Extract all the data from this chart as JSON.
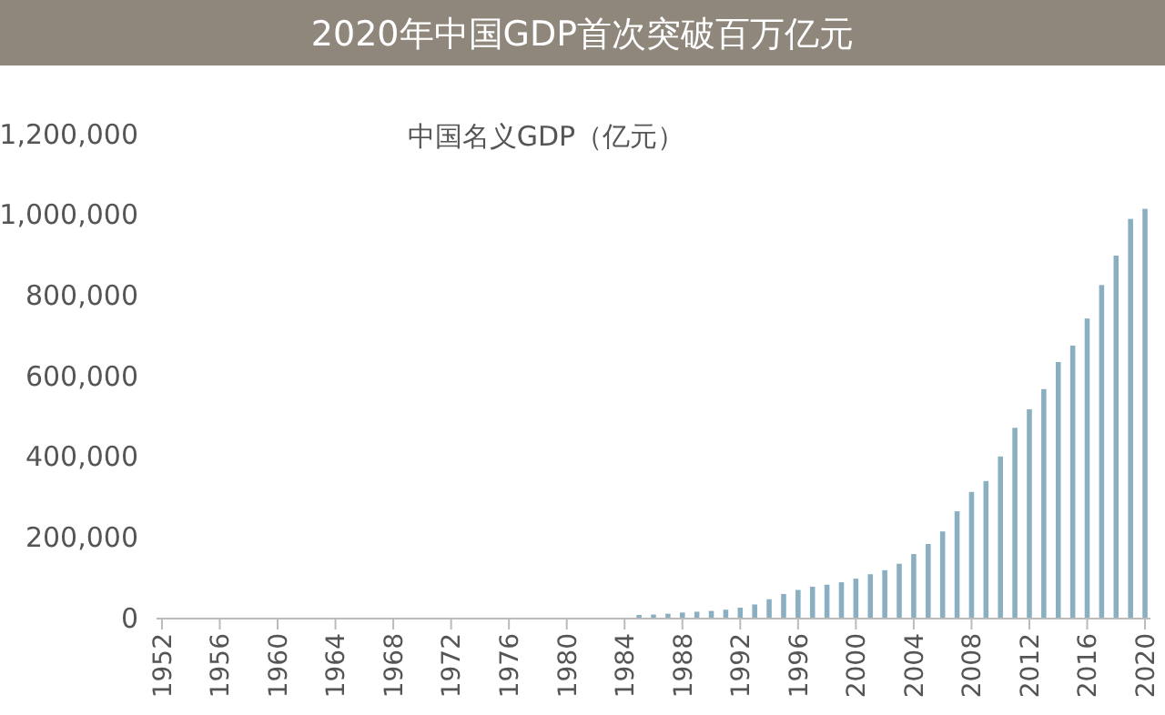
{
  "chart_data": {
    "type": "bar",
    "title": "2020年中国GDP首次突破百万亿元",
    "subtitle": "中国名义GDP（亿元）",
    "categories": [
      "1952",
      null,
      null,
      null,
      "1956",
      null,
      null,
      null,
      "1960",
      null,
      null,
      null,
      "1964",
      null,
      null,
      null,
      "1968",
      null,
      null,
      null,
      "1972",
      null,
      null,
      null,
      "1976",
      null,
      null,
      null,
      "1980",
      null,
      null,
      null,
      "1984",
      null,
      null,
      null,
      "1988",
      null,
      null,
      null,
      "1992",
      null,
      null,
      null,
      "1996",
      null,
      null,
      null,
      "2000",
      null,
      null,
      null,
      "2004",
      null,
      null,
      null,
      "2008",
      null,
      null,
      null,
      "2012",
      null,
      null,
      null,
      "2016",
      null,
      null,
      null,
      "2020"
    ],
    "values": [
      null,
      null,
      null,
      null,
      null,
      null,
      null,
      null,
      null,
      null,
      null,
      null,
      null,
      null,
      null,
      null,
      null,
      null,
      null,
      null,
      null,
      null,
      null,
      null,
      null,
      null,
      null,
      null,
      null,
      null,
      null,
      null,
      null,
      9000,
      10000,
      12000,
      15000,
      17000,
      19000,
      22000,
      27000,
      35000,
      48000,
      61000,
      71000,
      79000,
      84000,
      90000,
      99000,
      110000,
      120000,
      136000,
      160000,
      185000,
      216000,
      266000,
      314000,
      341000,
      402000,
      473000,
      519000,
      569000,
      636000,
      677000,
      744000,
      827000,
      900000,
      991000,
      1016000
    ],
    "color": "#8aafc0",
    "ylim": [
      0,
      1200000
    ],
    "yticks": [
      0,
      {
        "value": 200000,
        "label": "200,000"
      },
      {
        "value": 400000,
        "label": "400,000"
      },
      {
        "value": 600000,
        "label": "600,000"
      },
      {
        "value": 800000,
        "label": "800,000"
      },
      {
        "value": 1000000,
        "label": "1,000,000"
      },
      {
        "value": 1200000,
        "label": "1,200,000"
      }
    ]
  }
}
